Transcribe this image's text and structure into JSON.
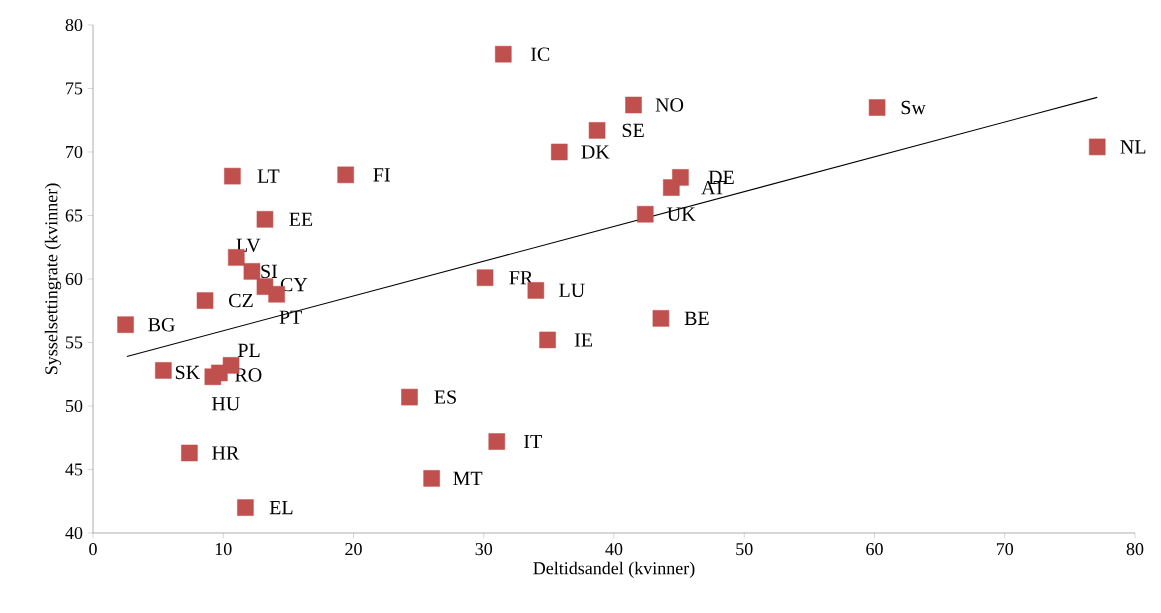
{
  "chart_data": {
    "type": "scatter",
    "xlabel": "Deltidsandel (kvinner)",
    "ylabel": "Sysselsettingrate (kvinner)",
    "xlim": [
      0,
      80
    ],
    "ylim": [
      40,
      80
    ],
    "xticks": [
      0,
      10,
      20,
      30,
      40,
      50,
      60,
      70,
      80
    ],
    "yticks": [
      40,
      45,
      50,
      55,
      60,
      65,
      70,
      75,
      80
    ],
    "grid": false,
    "marker": "square",
    "series": [
      {
        "color": "#c0504d",
        "x": [
          31.5,
          41.5,
          60.2,
          38.7,
          77.1,
          35.8,
          45.1,
          44.4,
          10.7,
          19.4,
          13.2,
          42.4,
          11.0,
          12.2,
          13.2,
          14.1,
          30.1,
          34.0,
          8.6,
          2.5,
          43.6,
          34.9,
          10.6,
          5.4,
          9.7,
          9.2,
          24.3,
          31.0,
          7.4,
          26.0,
          11.7
        ],
        "values": [
          77.7,
          73.7,
          73.5,
          71.7,
          70.4,
          70.0,
          68.0,
          67.2,
          68.1,
          68.2,
          64.7,
          65.1,
          61.7,
          60.6,
          59.4,
          58.8,
          60.1,
          59.1,
          58.3,
          56.4,
          56.9,
          55.2,
          53.2,
          52.8,
          52.6,
          52.3,
          50.7,
          47.2,
          46.3,
          44.3,
          42.0
        ],
        "value_labels": [
          "IC",
          "NO",
          "Sw",
          "SE",
          "NL",
          "DK",
          "DE",
          "AT",
          "LT",
          "FI",
          "EE",
          "UK",
          "LV",
          "SI",
          "CY",
          "PT",
          "FR",
          "LU",
          "CZ",
          "BG",
          "BE",
          "IE",
          "PL",
          "SK",
          "RO",
          "HU",
          "ES",
          "IT",
          "HR",
          "MT",
          "EL"
        ]
      },
      {
        "type": "line",
        "color": "#000000",
        "marker": "none",
        "x": [
          2.6,
          77.1
        ],
        "values": [
          53.9,
          74.3
        ]
      }
    ]
  }
}
